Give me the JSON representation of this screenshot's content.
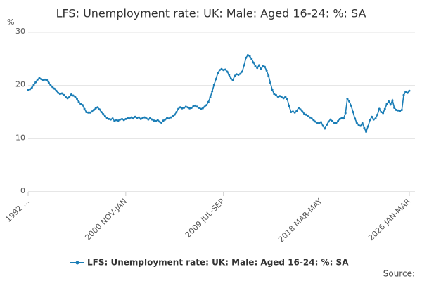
{
  "chart_data": {
    "type": "line",
    "title": "LFS: Unemployment rate: UK: Male: Aged 16-24: %: SA",
    "y_label": "%",
    "source": "Source:",
    "categories": [
      "1992 ...",
      null,
      null,
      null,
      null,
      null,
      null,
      null,
      null,
      null,
      null,
      null,
      null,
      null,
      null,
      null,
      null,
      null,
      null,
      null,
      null,
      null,
      null,
      null,
      null,
      null,
      null,
      null,
      null,
      null,
      null,
      null,
      null,
      null,
      null,
      null,
      null,
      null,
      null,
      null,
      null,
      null,
      null,
      null,
      null,
      null,
      null,
      null,
      null,
      null,
      null,
      null,
      "2000 NOV-JAN",
      null,
      null,
      null,
      null,
      null,
      null,
      null,
      null,
      null,
      null,
      null,
      null,
      null,
      null,
      null,
      null,
      null,
      null,
      null,
      null,
      null,
      null,
      null,
      null,
      null,
      null,
      null,
      null,
      null,
      null,
      null,
      null,
      null,
      null,
      null,
      null,
      null,
      null,
      null,
      null,
      null,
      null,
      null,
      null,
      null,
      null,
      null,
      null,
      null,
      null,
      null,
      "2009 JUL-SEP",
      null,
      null,
      null,
      null,
      null,
      null,
      null,
      null,
      null,
      null,
      null,
      null,
      null,
      null,
      null,
      null,
      null,
      null,
      null,
      null,
      null,
      null,
      null,
      null,
      null,
      null,
      null,
      null,
      null,
      null,
      null,
      null,
      null,
      null,
      null,
      null,
      null,
      null,
      null,
      null,
      null,
      null,
      null,
      null,
      null,
      null,
      null,
      null,
      null,
      null,
      null,
      "2018 MAR-MAY",
      null,
      null,
      null,
      null,
      null,
      null,
      null,
      null,
      null,
      null,
      null,
      null,
      null,
      null,
      null,
      null,
      null,
      null,
      null,
      null,
      null,
      null,
      null,
      null,
      null,
      null,
      null,
      null,
      null,
      null,
      null,
      null,
      null,
      null,
      null,
      null,
      null,
      null,
      null,
      null,
      null,
      null,
      null,
      null,
      null,
      null,
      "2026 JAN-MAR"
    ],
    "series": [
      {
        "name": "LFS: Unemployment rate: UK: Male: Aged 16-24: %: SA",
        "color": "#1a7db6",
        "values": [
          19.2,
          19.3,
          19.6,
          20.1,
          20.6,
          21.1,
          21.4,
          21.2,
          21.0,
          21.1,
          21.0,
          20.5,
          20.0,
          19.7,
          19.4,
          19.0,
          18.6,
          18.4,
          18.5,
          18.2,
          17.9,
          17.6,
          17.9,
          18.3,
          18.1,
          17.9,
          17.5,
          16.9,
          16.5,
          16.3,
          15.6,
          15.0,
          14.9,
          14.9,
          15.1,
          15.4,
          15.7,
          15.9,
          15.5,
          15.0,
          14.6,
          14.2,
          13.9,
          13.7,
          13.6,
          13.8,
          13.3,
          13.5,
          13.4,
          13.6,
          13.7,
          13.5,
          13.7,
          13.9,
          13.8,
          14.0,
          13.8,
          14.1,
          13.9,
          14.0,
          13.7,
          13.9,
          14.0,
          13.8,
          13.6,
          13.9,
          13.6,
          13.4,
          13.3,
          13.5,
          13.2,
          13.0,
          13.4,
          13.6,
          13.9,
          13.8,
          14.0,
          14.2,
          14.5,
          15.0,
          15.6,
          15.9,
          15.7,
          15.8,
          16.0,
          15.9,
          15.7,
          15.8,
          16.1,
          16.2,
          16.0,
          15.8,
          15.6,
          15.7,
          16.0,
          16.3,
          16.9,
          17.8,
          18.9,
          20.1,
          21.2,
          22.3,
          22.9,
          23.1,
          22.9,
          23.0,
          22.6,
          22.0,
          21.3,
          21.0,
          21.8,
          22.1,
          22.0,
          22.2,
          22.6,
          23.8,
          25.2,
          25.7,
          25.5,
          25.0,
          24.3,
          23.6,
          23.3,
          23.8,
          23.1,
          23.6,
          23.5,
          22.8,
          21.8,
          20.5,
          19.2,
          18.4,
          18.2,
          17.9,
          18.0,
          17.8,
          17.6,
          17.9,
          17.4,
          16.1,
          15.0,
          15.1,
          14.9,
          15.2,
          15.8,
          15.5,
          15.1,
          14.7,
          14.5,
          14.2,
          14.0,
          13.8,
          13.5,
          13.2,
          13.0,
          12.9,
          13.1,
          12.4,
          11.9,
          12.6,
          13.2,
          13.6,
          13.3,
          13.0,
          12.9,
          13.3,
          13.7,
          13.9,
          13.8,
          14.8,
          17.5,
          17.0,
          16.2,
          15.0,
          13.8,
          13.0,
          12.6,
          12.4,
          12.9,
          12.0,
          11.3,
          12.3,
          13.5,
          14.1,
          13.6,
          13.8,
          14.5,
          15.6,
          15.0,
          14.8,
          15.6,
          16.5,
          17.0,
          16.4,
          17.2,
          15.8,
          15.4,
          15.3,
          15.2,
          15.4,
          18.2,
          18.8,
          18.6,
          19.0
        ]
      }
    ],
    "ylim": [
      0,
      30
    ],
    "yticks": [
      0,
      10,
      20,
      30
    ],
    "grid": true
  }
}
